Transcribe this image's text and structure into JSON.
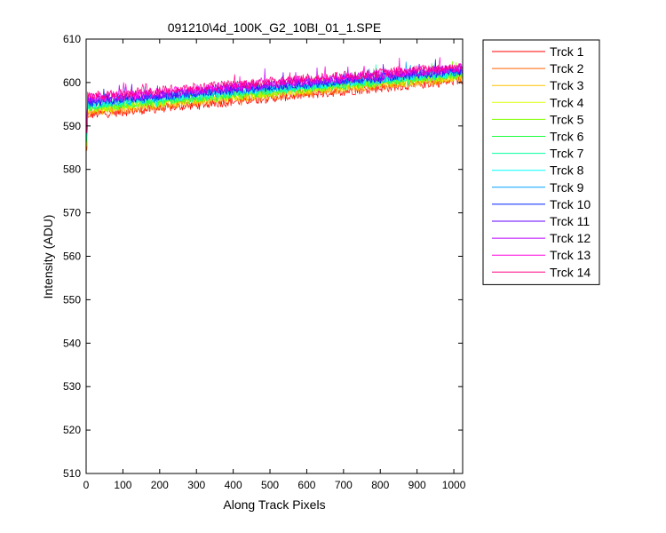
{
  "chart_data": {
    "type": "line",
    "title": "091210\\4d_100K_G2_10BI_01_1.SPE",
    "xlabel": "Along Track Pixels",
    "ylabel": "Intensity (ADU)",
    "xlim": [
      0,
      1024
    ],
    "ylim": [
      510,
      610
    ],
    "xticks": [
      0,
      100,
      200,
      300,
      400,
      500,
      600,
      700,
      800,
      900,
      1000
    ],
    "yticks": [
      510,
      520,
      530,
      540,
      550,
      560,
      570,
      580,
      590,
      600,
      610
    ],
    "grid": false,
    "legend_position": "outside-right",
    "note_values": "Approximate trend per track: value at x=0 and x=1024 (noisy data, ~±1.5 ADU fluctuation).",
    "series": [
      {
        "name": "Trck 1",
        "color": "#ff0000",
        "start": 592.5,
        "end": 600.5
      },
      {
        "name": "Trck 2",
        "color": "#ff6000",
        "start": 593.0,
        "end": 601.0
      },
      {
        "name": "Trck 3",
        "color": "#ffc000",
        "start": 593.5,
        "end": 601.2
      },
      {
        "name": "Trck 4",
        "color": "#dfff00",
        "start": 593.8,
        "end": 601.5
      },
      {
        "name": "Trck 5",
        "color": "#80ff00",
        "start": 594.0,
        "end": 601.7
      },
      {
        "name": "Trck 6",
        "color": "#20ff40",
        "start": 594.3,
        "end": 602.0
      },
      {
        "name": "Trck 7",
        "color": "#00ff9f",
        "start": 594.6,
        "end": 602.2
      },
      {
        "name": "Trck 8",
        "color": "#00ffff",
        "start": 594.9,
        "end": 602.4
      },
      {
        "name": "Trck 9",
        "color": "#009fff",
        "start": 595.2,
        "end": 602.6
      },
      {
        "name": "Trck 10",
        "color": "#0020ff",
        "start": 595.5,
        "end": 602.8
      },
      {
        "name": "Trck 11",
        "color": "#6000ff",
        "start": 595.8,
        "end": 603.0
      },
      {
        "name": "Trck 12",
        "color": "#bf00ff",
        "start": 596.1,
        "end": 603.2
      },
      {
        "name": "Trck 13",
        "color": "#ff00df",
        "start": 596.4,
        "end": 603.4
      },
      {
        "name": "Trck 14",
        "color": "#ff0080",
        "start": 596.8,
        "end": 603.7
      }
    ]
  }
}
